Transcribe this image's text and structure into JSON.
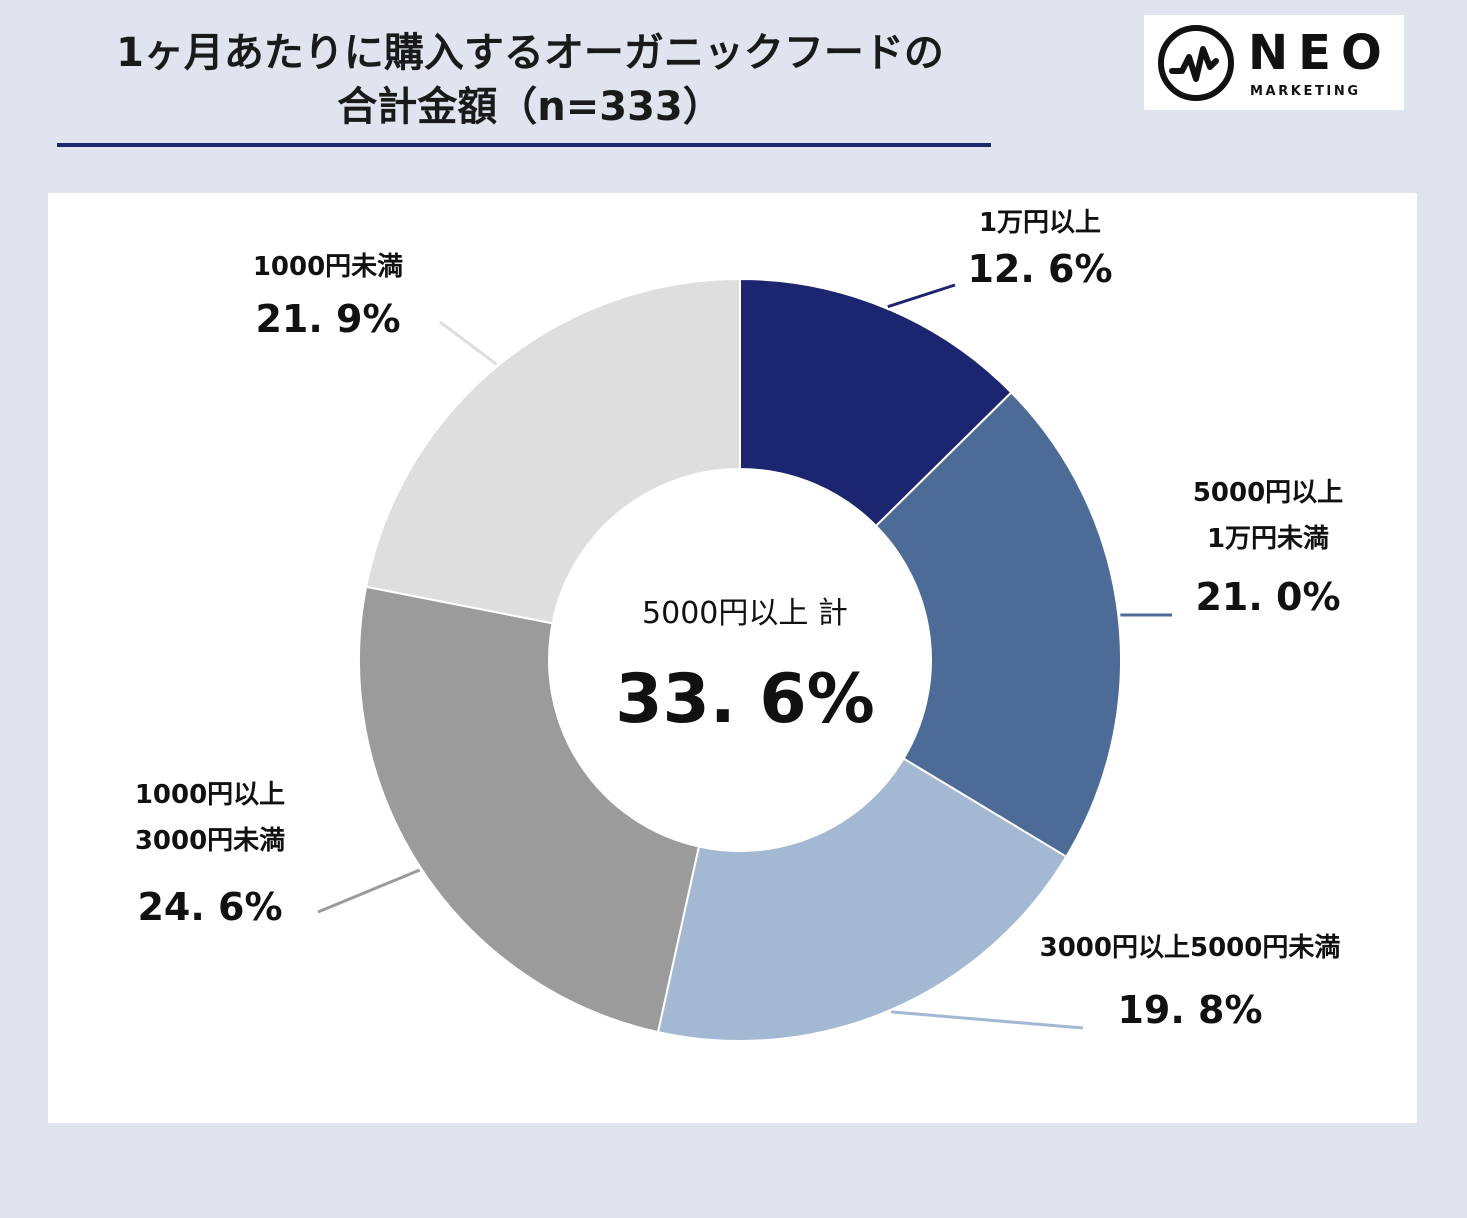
{
  "title": {
    "line1": "1ヶ月あたりに購入するオーガニックフードの",
    "line2": "合計金額（n=333）"
  },
  "logo": {
    "main": "NEO",
    "sub": "MARKETING"
  },
  "center": {
    "caption": "5000円以上 計",
    "value": "33. 6%"
  },
  "colors": {
    "background": "#dfe4ee",
    "accent": "#1c2a6b",
    "slices": [
      "#1c2570",
      "#4d6b97",
      "#a3b8d2",
      "#9b9b9b",
      "#dedede"
    ]
  },
  "chart_data": {
    "type": "pie",
    "donut": true,
    "unit": "%",
    "start": "12 o'clock",
    "direction": "clockwise",
    "categories": [
      "1万円以上",
      "5000円以上1万円未満",
      "3000円以上5000円未満",
      "1000円以上3000円未満",
      "1000円未満"
    ],
    "values": [
      12.6,
      21.0,
      19.8,
      24.6,
      21.9
    ],
    "labels": [
      {
        "lines": [
          "1万円以上"
        ],
        "pct": "12. 6%"
      },
      {
        "lines": [
          "5000円以上",
          "1万円未満"
        ],
        "pct": "21. 0%"
      },
      {
        "lines": [
          "3000円以上5000円未満"
        ],
        "pct": "19. 8%"
      },
      {
        "lines": [
          "1000円以上",
          "3000円未満"
        ],
        "pct": "24. 6%"
      },
      {
        "lines": [
          "1000円未満"
        ],
        "pct": "21. 9%"
      }
    ]
  }
}
